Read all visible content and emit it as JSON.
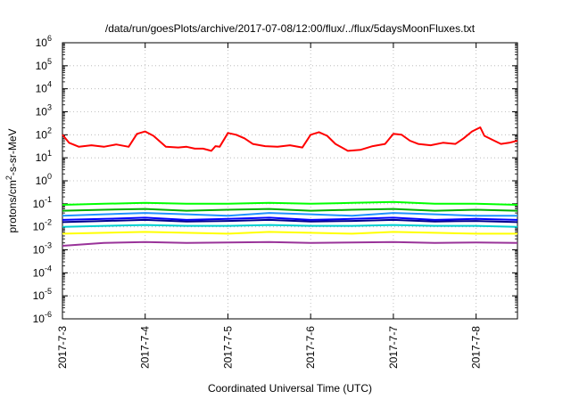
{
  "chart_data": {
    "type": "line",
    "title": "/data/run/goesPlots/archive/2017-07-08/12:00/flux/../flux/5daysMoonFluxes.txt",
    "xlabel": "Coordinated Universal Time (UTC)",
    "ylabel": "protons/cm²-s-sr-MeV",
    "ylabel_parts": {
      "pre": "protons/cm",
      "sup": "2",
      "post": "-s-sr-MeV"
    },
    "yscale": "log",
    "ylim_exp": [
      -6,
      6
    ],
    "y_tick_labels": [
      {
        "exp": 6,
        "base": "10",
        "sup": "6"
      },
      {
        "exp": 5,
        "base": "10",
        "sup": "5"
      },
      {
        "exp": 4,
        "base": "10",
        "sup": "4"
      },
      {
        "exp": 3,
        "base": "10",
        "sup": "3"
      },
      {
        "exp": 2,
        "base": "10",
        "sup": "2"
      },
      {
        "exp": 1,
        "base": "10",
        "sup": "1"
      },
      {
        "exp": 0,
        "base": "10",
        "sup": "0"
      },
      {
        "exp": -1,
        "base": "10",
        "sup": "-1"
      },
      {
        "exp": -2,
        "base": "10",
        "sup": "-2"
      },
      {
        "exp": -3,
        "base": "10",
        "sup": "-3"
      },
      {
        "exp": -4,
        "base": "10",
        "sup": "-4"
      },
      {
        "exp": -5,
        "base": "10",
        "sup": "-5"
      },
      {
        "exp": -6,
        "base": "10",
        "sup": "-6"
      }
    ],
    "x_range_days": [
      0,
      5.5
    ],
    "x_ticks": [
      {
        "day": 0,
        "label": "2017-7-3"
      },
      {
        "day": 1,
        "label": "2017-7-4"
      },
      {
        "day": 2,
        "label": "2017-7-5"
      },
      {
        "day": 3,
        "label": "2017-7-6"
      },
      {
        "day": 4,
        "label": "2017-7-7"
      },
      {
        "day": 5,
        "label": "2017-7-8"
      }
    ],
    "grid": true,
    "legend": "none",
    "series": [
      {
        "color": "#ff0000",
        "x": [
          0,
          0.08,
          0.2,
          0.35,
          0.5,
          0.65,
          0.8,
          0.9,
          1.0,
          1.1,
          1.25,
          1.4,
          1.5,
          1.6,
          1.7,
          1.8,
          1.85,
          1.9,
          2.0,
          2.1,
          2.2,
          2.3,
          2.45,
          2.6,
          2.75,
          2.9,
          3.0,
          3.1,
          3.2,
          3.3,
          3.45,
          3.6,
          3.75,
          3.9,
          4.0,
          4.1,
          4.2,
          4.3,
          4.45,
          4.6,
          4.75,
          4.85,
          4.95,
          5.05,
          5.1,
          5.2,
          5.3,
          5.4,
          5.5
        ],
        "values": [
          100,
          45,
          30,
          35,
          30,
          38,
          30,
          110,
          140,
          90,
          30,
          28,
          30,
          25,
          25,
          20,
          32,
          30,
          120,
          100,
          70,
          40,
          32,
          30,
          35,
          28,
          100,
          130,
          90,
          40,
          20,
          22,
          32,
          40,
          110,
          100,
          55,
          40,
          35,
          45,
          40,
          70,
          140,
          210,
          90,
          60,
          40,
          45,
          55
        ]
      },
      {
        "color": "#00ff00",
        "x": [
          0,
          0.5,
          1.0,
          1.5,
          2.0,
          2.5,
          3.0,
          3.5,
          4.0,
          4.5,
          5.0,
          5.5
        ],
        "values": [
          0.09,
          0.1,
          0.11,
          0.1,
          0.1,
          0.11,
          0.1,
          0.11,
          0.12,
          0.1,
          0.1,
          0.09
        ]
      },
      {
        "color": "#00b000",
        "x": [
          0,
          0.5,
          1.0,
          1.5,
          2.0,
          2.5,
          3.0,
          3.5,
          4.0,
          4.5,
          5.0,
          5.5
        ],
        "values": [
          0.05,
          0.055,
          0.06,
          0.05,
          0.055,
          0.06,
          0.05,
          0.055,
          0.06,
          0.05,
          0.055,
          0.05
        ]
      },
      {
        "color": "#1e90ff",
        "x": [
          0,
          0.5,
          1.0,
          1.5,
          2.0,
          2.5,
          3.0,
          3.5,
          4.0,
          4.5,
          5.0,
          5.5
        ],
        "values": [
          0.03,
          0.035,
          0.04,
          0.035,
          0.03,
          0.04,
          0.035,
          0.03,
          0.04,
          0.035,
          0.03,
          0.03
        ]
      },
      {
        "color": "#0000ff",
        "x": [
          0,
          0.5,
          1.0,
          1.5,
          2.0,
          2.5,
          3.0,
          3.5,
          4.0,
          4.5,
          5.0,
          5.5
        ],
        "values": [
          0.02,
          0.022,
          0.025,
          0.02,
          0.022,
          0.025,
          0.02,
          0.022,
          0.025,
          0.02,
          0.022,
          0.02
        ]
      },
      {
        "color": "#00008b",
        "x": [
          0,
          0.5,
          1.0,
          1.5,
          2.0,
          2.5,
          3.0,
          3.5,
          4.0,
          4.5,
          5.0,
          5.5
        ],
        "values": [
          0.016,
          0.018,
          0.02,
          0.017,
          0.018,
          0.02,
          0.017,
          0.018,
          0.02,
          0.017,
          0.018,
          0.016
        ]
      },
      {
        "color": "#00ced1",
        "x": [
          0,
          0.5,
          1.0,
          1.5,
          2.0,
          2.5,
          3.0,
          3.5,
          4.0,
          4.5,
          5.0,
          5.5
        ],
        "values": [
          0.01,
          0.011,
          0.012,
          0.011,
          0.011,
          0.012,
          0.011,
          0.011,
          0.012,
          0.011,
          0.011,
          0.01
        ]
      },
      {
        "color": "#ffff00",
        "x": [
          0,
          0.5,
          1.0,
          1.5,
          2.0,
          2.5,
          3.0,
          3.5,
          4.0,
          4.5,
          5.0,
          5.5
        ],
        "values": [
          0.005,
          0.0055,
          0.006,
          0.0055,
          0.005,
          0.006,
          0.0055,
          0.005,
          0.006,
          0.0055,
          0.005,
          0.005
        ]
      },
      {
        "color": "#993399",
        "x": [
          0,
          0.5,
          1.0,
          1.5,
          2.0,
          2.5,
          3.0,
          3.5,
          4.0,
          4.5,
          5.0,
          5.5
        ],
        "values": [
          0.0015,
          0.002,
          0.0022,
          0.002,
          0.0021,
          0.0022,
          0.002,
          0.0021,
          0.0022,
          0.002,
          0.0021,
          0.002
        ]
      }
    ]
  }
}
